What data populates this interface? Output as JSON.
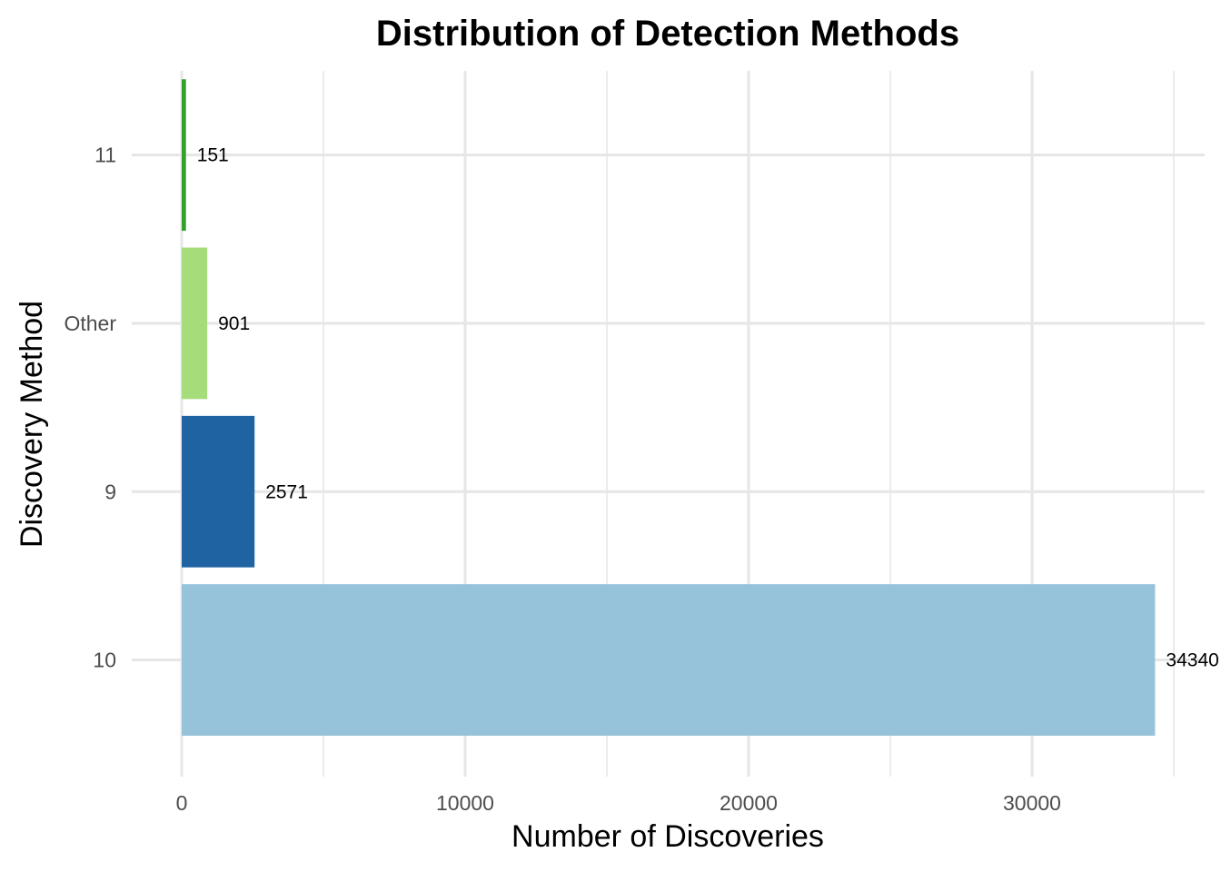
{
  "chart_data": {
    "type": "bar",
    "orientation": "horizontal",
    "title": "Distribution of Detection Methods",
    "xlabel": "Number of Discoveries",
    "ylabel": "Discovery Method",
    "categories": [
      "10",
      "9",
      "Other",
      "11"
    ],
    "values": [
      34340,
      2571,
      901,
      151
    ],
    "value_labels": [
      "34340",
      "2571",
      "901",
      "151"
    ],
    "colors": [
      "#96c2da",
      "#1f63a3",
      "#a6dc7a",
      "#33a02c"
    ],
    "xlim": [
      0,
      35000
    ],
    "xticks": [
      0,
      10000,
      20000,
      30000
    ],
    "xtick_labels": [
      "0",
      "10000",
      "20000",
      "30000"
    ],
    "grid": true,
    "legend": "none"
  }
}
